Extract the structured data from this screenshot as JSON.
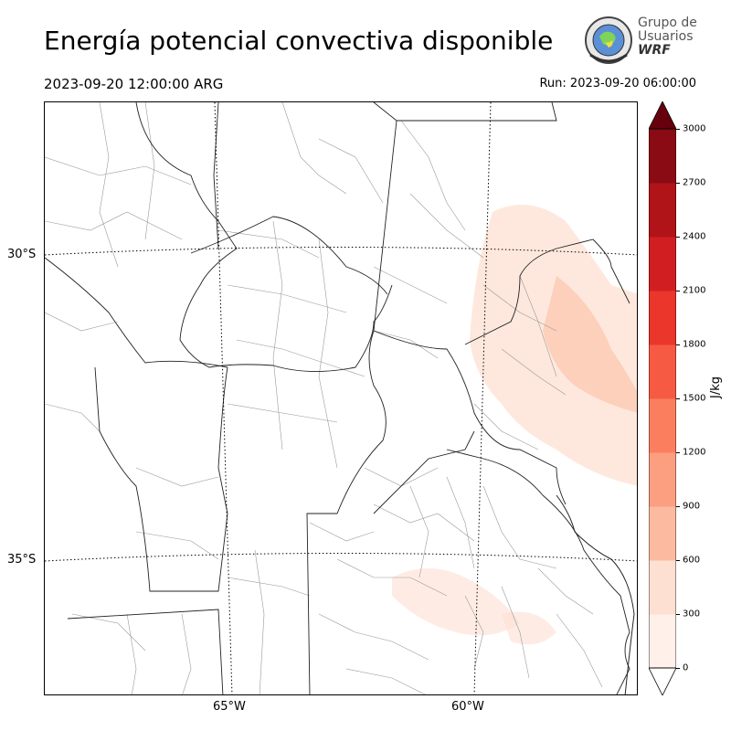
{
  "header": {
    "title": "Energía potencial convectiva disponible",
    "valid_time": "2023-09-20 12:00:00 ARG",
    "run_time": "Run: 2023-09-20 06:00:00"
  },
  "logo": {
    "line1": "Grupo de",
    "line2": "Usuarios",
    "line3": "WRF"
  },
  "map": {
    "lat_labels": [
      "30°S",
      "35°S"
    ],
    "lon_labels": [
      "65°W",
      "60°W"
    ],
    "shading_color": "#fee0d2",
    "shading_color_strong": "#fcbba1"
  },
  "colorbar": {
    "unit": "J/kg",
    "ticks": [
      "0",
      "300",
      "600",
      "900",
      "1200",
      "1500",
      "1800",
      "2100",
      "2400",
      "2700",
      "3000"
    ],
    "colors": [
      "#fff0ea",
      "#fee0d2",
      "#fcbba1",
      "#fc9f80",
      "#fb7f5f",
      "#f75a42",
      "#ea362b",
      "#d11f21",
      "#b01419",
      "#8a0b13"
    ],
    "over_color": "#67000d",
    "under_color": "#ffffff"
  }
}
